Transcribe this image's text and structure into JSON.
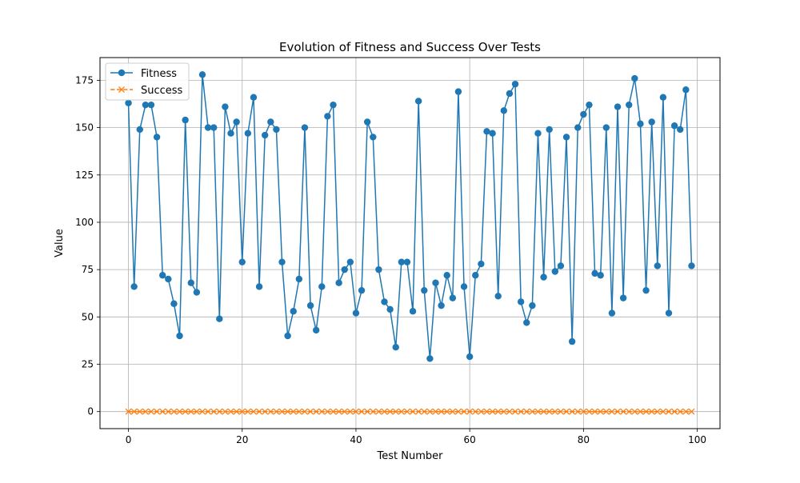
{
  "chart_data": {
    "type": "line",
    "title": "Evolution of Fitness and Success Over Tests",
    "xlabel": "Test Number",
    "ylabel": "Value",
    "xlim": [
      -5,
      104
    ],
    "ylim": [
      -9,
      187
    ],
    "xticks": [
      0,
      20,
      40,
      60,
      80,
      100
    ],
    "yticks": [
      0,
      25,
      50,
      75,
      100,
      125,
      150,
      175
    ],
    "grid": true,
    "legend_position": "top-left",
    "series": [
      {
        "name": "Fitness",
        "color": "#1f77b4",
        "marker": "circle",
        "linestyle": "solid",
        "values": [
          163,
          66,
          149,
          162,
          162,
          145,
          72,
          70,
          57,
          40,
          154,
          68,
          63,
          178,
          150,
          150,
          49,
          161,
          147,
          153,
          79,
          147,
          166,
          66,
          146,
          153,
          149,
          79,
          40,
          53,
          70,
          150,
          56,
          43,
          66,
          156,
          162,
          68,
          75,
          79,
          52,
          64,
          153,
          145,
          75,
          58,
          54,
          34,
          79,
          79,
          53,
          164,
          64,
          28,
          68,
          56,
          72,
          60,
          169,
          66,
          29,
          72,
          78,
          148,
          147,
          61,
          159,
          168,
          173,
          58,
          47,
          56,
          147,
          71,
          149,
          74,
          77,
          145,
          37,
          150,
          157,
          162,
          73,
          72,
          150,
          52,
          161,
          60,
          162,
          176,
          152,
          64,
          153,
          77,
          166,
          52,
          151,
          149,
          170,
          77
        ]
      },
      {
        "name": "Success",
        "color": "#ff7f0e",
        "marker": "x",
        "linestyle": "dashed",
        "values": [
          0,
          0,
          0,
          0,
          0,
          0,
          0,
          0,
          0,
          0,
          0,
          0,
          0,
          0,
          0,
          0,
          0,
          0,
          0,
          0,
          0,
          0,
          0,
          0,
          0,
          0,
          0,
          0,
          0,
          0,
          0,
          0,
          0,
          0,
          0,
          0,
          0,
          0,
          0,
          0,
          0,
          0,
          0,
          0,
          0,
          0,
          0,
          0,
          0,
          0,
          0,
          0,
          0,
          0,
          0,
          0,
          0,
          0,
          0,
          0,
          0,
          0,
          0,
          0,
          0,
          0,
          0,
          0,
          0,
          0,
          0,
          0,
          0,
          0,
          0,
          0,
          0,
          0,
          0,
          0,
          0,
          0,
          0,
          0,
          0,
          0,
          0,
          0,
          0,
          0,
          0,
          0,
          0,
          0,
          0,
          0,
          0,
          0,
          0,
          0
        ]
      }
    ]
  }
}
